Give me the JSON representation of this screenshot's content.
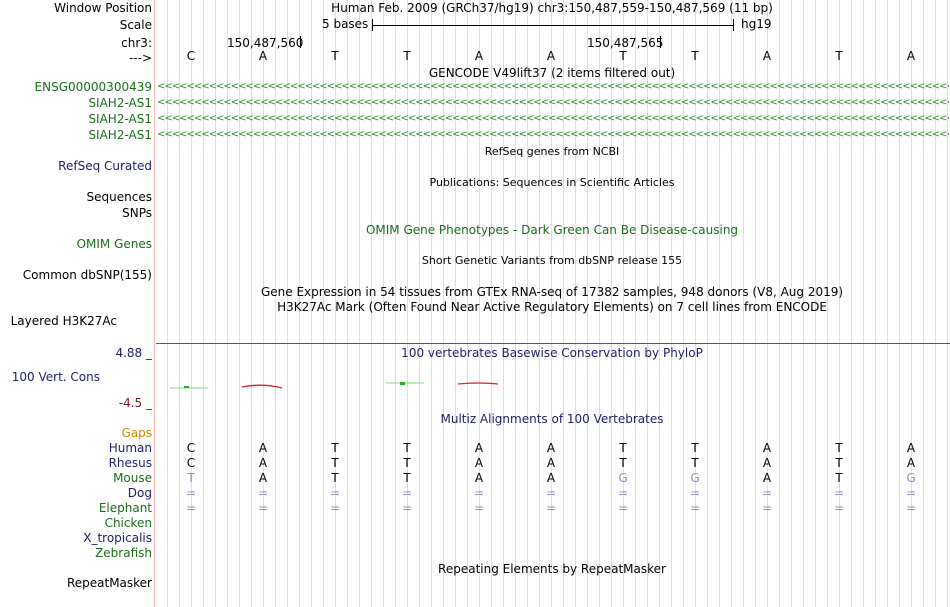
{
  "header": {
    "window_position_label": "Window Position",
    "assembly_text": "Human Feb. 2009 (GRCh37/hg19)   chr3:150,487,559-150,487,569 (11 bp)",
    "scale_label": "Scale",
    "scale_text": "5 bases",
    "scale_db": "hg19",
    "chrom_label": "chr3:",
    "coord_left": "150,487,560",
    "coord_right": "150,487,565",
    "strand_label": "--->"
  },
  "sequence": [
    "C",
    "A",
    "T",
    "T",
    "A",
    "A",
    "T",
    "T",
    "A",
    "T",
    "A"
  ],
  "tracks": {
    "gencode_title": "GENCODE V49lift37 (2 items filtered out)",
    "gencode_items": [
      "ENSG00000300439",
      "SIAH2-AS1",
      "SIAH2-AS1",
      "SIAH2-AS1"
    ],
    "refseq_label": "RefSeq Curated",
    "refseq_title": "RefSeq genes from NCBI",
    "sequences_label": "Sequences",
    "sequences_title": "Publications: Sequences in Scientific Articles",
    "snps_label": "SNPs",
    "omim_title": "OMIM Gene Phenotypes - Dark Green Can Be Disease-causing",
    "omim_label": "OMIM Genes",
    "dbsnp_title": "Short Genetic Variants from dbSNP release 155",
    "dbsnp_label": "Common dbSNP(155)",
    "gtex_title": "Gene Expression in 54 tissues from GTEx RNA-seq of 17382 samples, 948 donors (V8, Aug 2019)",
    "h3k27ac_title": "H3K27Ac Mark (Often Found Near Active Regulatory Elements) on 7 cell lines from ENCODE",
    "h3k27ac_label": "Layered H3K27Ac",
    "phylop_max": "4.88 _",
    "phylop_title": "100 vertebrates Basewise Conservation by PhyloP",
    "phylop_label": "100 Vert. Cons",
    "phylop_min": "-4.5 _",
    "multiz_title": "Multiz Alignments of 100 Vertebrates",
    "gaps_label": "Gaps",
    "repeatmasker_title": "Repeating Elements by RepeatMasker",
    "repeatmasker_label": "RepeatMasker"
  },
  "alignment": [
    {
      "species": "Human",
      "bases": [
        "C",
        "A",
        "T",
        "T",
        "A",
        "A",
        "T",
        "T",
        "A",
        "T",
        "A"
      ],
      "gray": []
    },
    {
      "species": "Rhesus",
      "bases": [
        "C",
        "A",
        "T",
        "T",
        "A",
        "A",
        "T",
        "T",
        "A",
        "T",
        "A"
      ],
      "gray": []
    },
    {
      "species": "Mouse",
      "bases": [
        "T",
        "A",
        "T",
        "T",
        "A",
        "A",
        "G",
        "G",
        "A",
        "T",
        "G"
      ],
      "gray": [
        0,
        6,
        7,
        10
      ]
    },
    {
      "species": "Dog",
      "bases": [
        "=",
        "=",
        "=",
        "=",
        "=",
        "=",
        "=",
        "=",
        "=",
        "=",
        "="
      ],
      "gray": [
        0,
        1,
        2,
        3,
        4,
        5,
        6,
        7,
        8,
        9,
        10
      ]
    },
    {
      "species": "Elephant",
      "bases": [
        "=",
        "=",
        "=",
        "=",
        "=",
        "=",
        "=",
        "=",
        "=",
        "=",
        "="
      ],
      "gray": [
        0,
        1,
        2,
        3,
        4,
        5,
        6,
        7,
        8,
        9,
        10
      ]
    },
    {
      "species": "Chicken",
      "bases": [],
      "gray": []
    },
    {
      "species": "X_tropicalis",
      "bases": [],
      "gray": []
    },
    {
      "species": "Zebrafish",
      "bases": [],
      "gray": []
    }
  ]
}
